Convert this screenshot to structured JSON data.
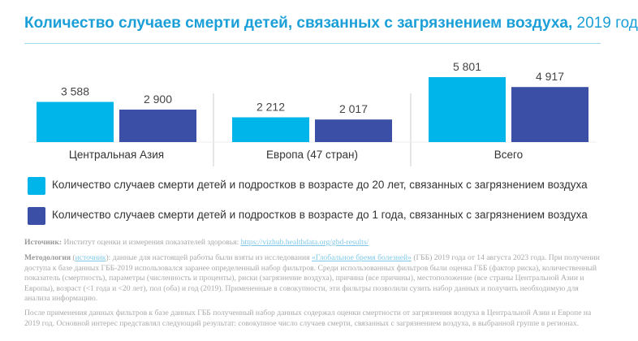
{
  "title": {
    "main": "Количество случаев смерти детей, связанных с загрязнением воздуха,",
    "year": "2019 год"
  },
  "colors": {
    "under20": "#00b5ea",
    "under1": "#3c4fa7",
    "title": "#1a9fd8"
  },
  "chart_data": {
    "type": "bar",
    "categories": [
      "Центральная Азия",
      "Европа (47 стран)",
      "Всего"
    ],
    "series": [
      {
        "name": "Количество случаев смерти детей и подростков в возрасте до 20 лет, связанных с загрязнением воздуха",
        "values": [
          3588,
          2212,
          5801
        ],
        "labels": [
          "3 588",
          "2 212",
          "5 801"
        ]
      },
      {
        "name": "Количество случаев смерти детей и подростков в возрасте до 1 года, связанных с загрязнением воздуха",
        "values": [
          2900,
          2017,
          4917
        ],
        "labels": [
          "2 900",
          "2 017",
          "4 917"
        ]
      }
    ],
    "ylim": [
      0,
      6000
    ],
    "grid": false,
    "legend": "bottom"
  },
  "notes": {
    "source_label": "Источник:",
    "source_text": "Институт оценки и измерения показателей здоровья:",
    "source_link": "https://vizhub.healthdata.org/gbd-results/",
    "method_label": "Методология",
    "method_link": "источник",
    "method_pre": "): данные для настоящей работы были взяты из исследования ",
    "method_link2": "«Глобальное бремя болезней»",
    "method_text": " (ГББ) 2019 года от 14 августа 2023 года. При получении доступа к базе данных ГББ-2019 использовался заранее определенный набор фильтров. Среди использованных фильтров были оценка ГББ (фактор риска), количественный показатель (смертность), параметры (численность и проценты), риски (загрязнение воздуха), причина (все причины), местоположение (все страны Центральной Азии и Европы), возраст (<1 года и <20 лет), пол (оба) и год (2019). Примененные в совокупности, эти фильтры позволили сузить набор данных и получить необходимую для анализа информацию.",
    "after": "После применения данных фильтров к базе данных ГББ полученный набор данных содержал оценки смертности от загрязнения воздуха в Центральной Азии и Европе на 2019 год. Основной интерес представлял следующий результат: совокупное число случаев смерти, связанных с загрязнением воздуха, в выбранной группе в регионах."
  }
}
